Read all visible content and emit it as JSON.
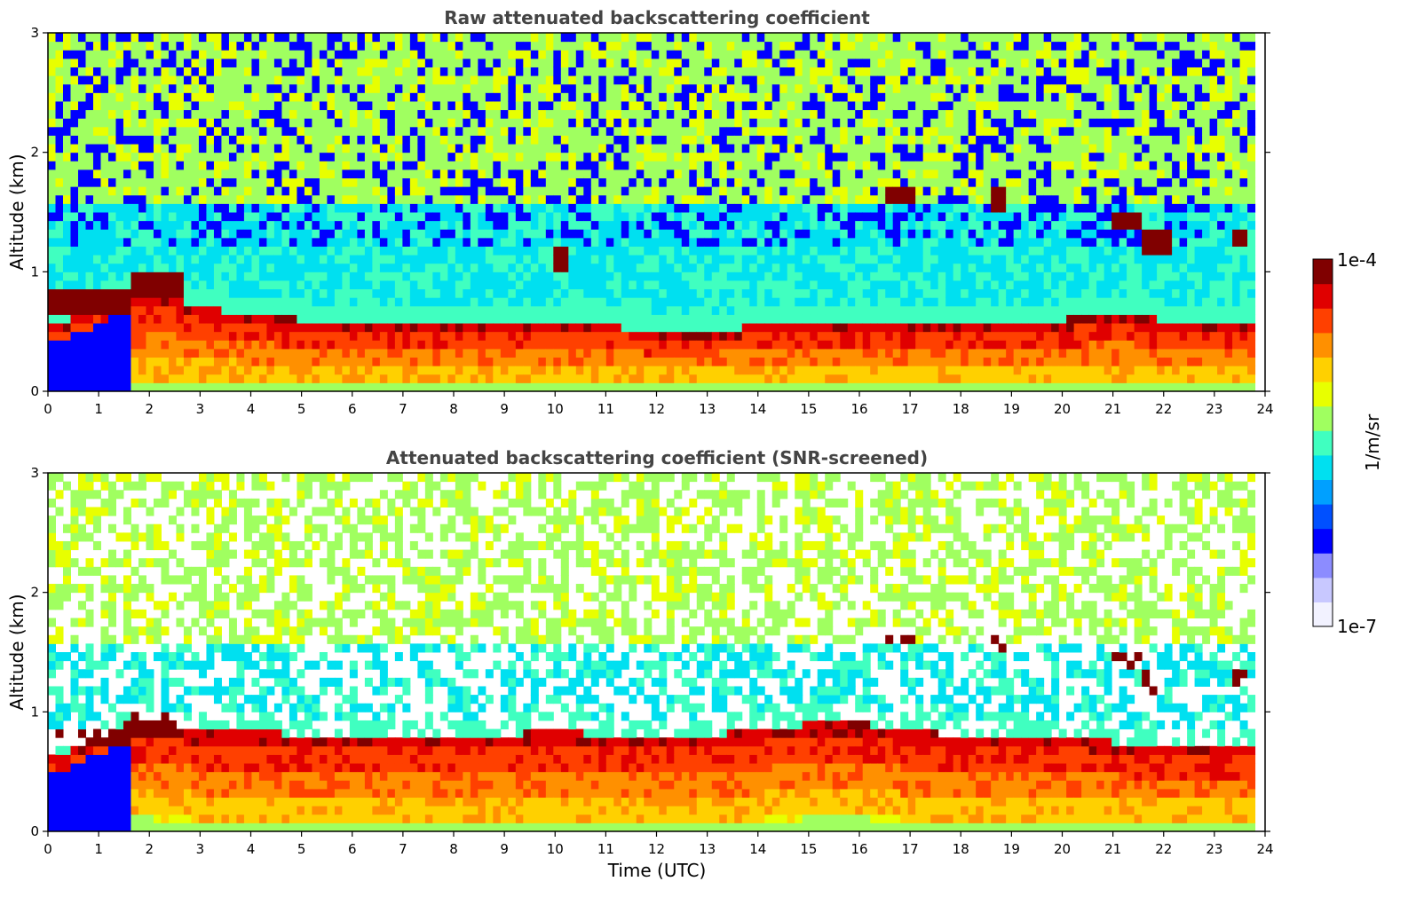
{
  "chart_data": [
    {
      "type": "heatmap",
      "title": "Raw attenuated backscattering coefficient",
      "ylabel": "Altitude (km)",
      "xlabel": "",
      "xlim": [
        0,
        24
      ],
      "ylim": [
        0,
        3
      ],
      "x_ticks": [
        0,
        1,
        2,
        3,
        4,
        5,
        6,
        7,
        8,
        9,
        10,
        11,
        12,
        13,
        14,
        15,
        16,
        17,
        18,
        19,
        20,
        21,
        22,
        23,
        24
      ],
      "y_ticks": [
        0,
        1,
        2,
        3
      ],
      "data_end_time": 23.8,
      "scale": "log",
      "colormap": "jet",
      "boundary_layer_top_km": [
        [
          0,
          0.55
        ],
        [
          1,
          0.7
        ],
        [
          1.6,
          0.85
        ],
        [
          2,
          0.85
        ],
        [
          3,
          0.7
        ],
        [
          4,
          0.65
        ],
        [
          5,
          0.6
        ],
        [
          6,
          0.6
        ],
        [
          7,
          0.6
        ],
        [
          8,
          0.6
        ],
        [
          9,
          0.55
        ],
        [
          10,
          0.55
        ],
        [
          11,
          0.55
        ],
        [
          12,
          0.5
        ],
        [
          13,
          0.5
        ],
        [
          14,
          0.55
        ],
        [
          15,
          0.55
        ],
        [
          16,
          0.6
        ],
        [
          17,
          0.6
        ],
        [
          18,
          0.6
        ],
        [
          19,
          0.6
        ],
        [
          20,
          0.6
        ],
        [
          21,
          0.65
        ],
        [
          22,
          0.6
        ],
        [
          23,
          0.6
        ],
        [
          23.8,
          0.6
        ]
      ],
      "cloud_features": [
        {
          "t_start": 0.0,
          "t_end": 1.6,
          "alt_km": 0.75,
          "note": "low cloud"
        },
        {
          "t_start": 1.6,
          "t_end": 2.7,
          "alt_km": 0.9,
          "note": "low cloud"
        },
        {
          "t_start": 9.9,
          "t_end": 10.3,
          "alt_km": 1.1,
          "note": "cloud"
        },
        {
          "t_start": 16.5,
          "t_end": 17.1,
          "alt_km": 1.65,
          "note": "cloud"
        },
        {
          "t_start": 18.6,
          "t_end": 18.9,
          "alt_km": 1.6,
          "note": "cloud"
        },
        {
          "t_start": 20.9,
          "t_end": 21.6,
          "alt_km": 1.45,
          "note": "cloud"
        },
        {
          "t_start": 21.6,
          "t_end": 22.1,
          "alt_km": 1.25,
          "note": "cloud"
        },
        {
          "t_start": 23.3,
          "t_end": 23.7,
          "alt_km": 1.3,
          "note": "cloud"
        }
      ]
    },
    {
      "type": "heatmap",
      "title": "Attenuated backscattering coefficient (SNR-screened)",
      "ylabel": "Altitude (km)",
      "xlabel": "Time (UTC)",
      "xlim": [
        0,
        24
      ],
      "ylim": [
        0,
        3
      ],
      "x_ticks": [
        0,
        1,
        2,
        3,
        4,
        5,
        6,
        7,
        8,
        9,
        10,
        11,
        12,
        13,
        14,
        15,
        16,
        17,
        18,
        19,
        20,
        21,
        22,
        23,
        24
      ],
      "y_ticks": [
        0,
        1,
        2,
        3
      ],
      "data_end_time": 23.8,
      "scale": "log",
      "colormap": "jet",
      "boundary_layer_top_km": [
        [
          0,
          0.6
        ],
        [
          1,
          0.8
        ],
        [
          1.6,
          0.9
        ],
        [
          2,
          0.9
        ],
        [
          3,
          0.85
        ],
        [
          4,
          0.85
        ],
        [
          5,
          0.8
        ],
        [
          6,
          0.8
        ],
        [
          7,
          0.8
        ],
        [
          8,
          0.8
        ],
        [
          9,
          0.8
        ],
        [
          10,
          0.85
        ],
        [
          11,
          0.8
        ],
        [
          12,
          0.8
        ],
        [
          13,
          0.8
        ],
        [
          14,
          0.85
        ],
        [
          15,
          0.9
        ],
        [
          16,
          0.9
        ],
        [
          17,
          0.85
        ],
        [
          18,
          0.8
        ],
        [
          19,
          0.8
        ],
        [
          20,
          0.8
        ],
        [
          21,
          0.75
        ],
        [
          22,
          0.7
        ],
        [
          23,
          0.7
        ],
        [
          23.8,
          0.7
        ]
      ],
      "cloud_features": [
        {
          "t_start": 0.0,
          "t_end": 1.6,
          "alt_km": 0.8,
          "note": "low cloud"
        },
        {
          "t_start": 1.6,
          "t_end": 2.6,
          "alt_km": 0.9,
          "note": "low cloud"
        },
        {
          "t_start": 16.5,
          "t_end": 17.1,
          "alt_km": 1.65,
          "note": "cloud"
        },
        {
          "t_start": 18.6,
          "t_end": 18.9,
          "alt_km": 1.6,
          "note": "cloud"
        },
        {
          "t_start": 20.9,
          "t_end": 21.5,
          "alt_km": 1.45,
          "note": "cloud"
        },
        {
          "t_start": 21.6,
          "t_end": 22.0,
          "alt_km": 1.25,
          "note": "cloud"
        },
        {
          "t_start": 23.3,
          "t_end": 23.7,
          "alt_km": 1.3,
          "note": "cloud"
        }
      ]
    }
  ],
  "colorbar": {
    "label": "1/m/sr",
    "max_label": "1e-4",
    "min_label": "1e-7",
    "min": 1e-07,
    "max": 0.0001,
    "scale": "log",
    "colors": [
      "#f2f2ff",
      "#c8c8ff",
      "#8c8cff",
      "#0000ff",
      "#0050ff",
      "#00a0ff",
      "#00e0f0",
      "#40ffc0",
      "#a0ff60",
      "#e8ff00",
      "#ffd000",
      "#ff9000",
      "#ff4000",
      "#e00000",
      "#800000"
    ]
  }
}
